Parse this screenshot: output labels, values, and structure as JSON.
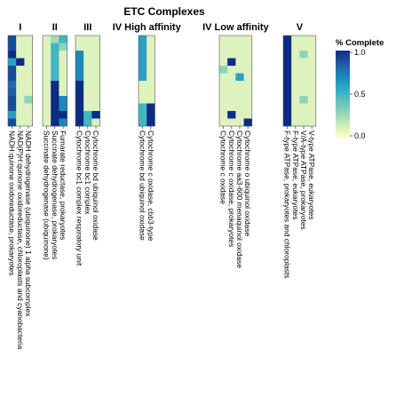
{
  "chart_data": {
    "type": "heatmap",
    "title": "ETC Complexes",
    "row_count": 12,
    "legend": {
      "title": "% Complete",
      "ticks": [
        "0.0",
        "0.5",
        "1.0"
      ],
      "range": [
        0,
        1
      ],
      "position": "right"
    },
    "colorscale": [
      "#ffffcc",
      "#c7e9b4",
      "#7fcdbb",
      "#41b6c4",
      "#1d91c0",
      "#225ea8",
      "#0c2c84"
    ],
    "groups": [
      {
        "label": "I",
        "columns": [
          {
            "label": "NADH:quinone oxidoreductase, prokaryotes",
            "values": [
              0.9,
              0.9,
              1.0,
              0.6,
              0.9,
              0.9,
              0.8,
              0.85,
              0.9,
              0.9,
              0.6,
              0.9
            ]
          },
          {
            "label": "NAD(P)H:quinone oxidoreductase, chloroplasts and cyanobacteria",
            "values": [
              0.1,
              0.1,
              0.1,
              1.0,
              0.1,
              0.1,
              0.1,
              0.1,
              0.1,
              0.1,
              0.1,
              0.1
            ]
          },
          {
            "label": "NADH dehydrogenase (ubiquinone) 1 alpha subcomplex",
            "values": [
              0.1,
              0.1,
              0.1,
              0.1,
              0.1,
              0.1,
              0.1,
              0.1,
              0.3,
              0.1,
              0.1,
              0.1
            ]
          }
        ]
      },
      {
        "label": "II",
        "columns": [
          {
            "label": "Succinate dehydrogenase (ubiquinone)",
            "values": [
              0.1,
              0.1,
              0.1,
              0.1,
              0.1,
              0.1,
              0.1,
              0.1,
              0.1,
              0.1,
              0.1,
              0.1
            ]
          },
          {
            "label": "Succinate dehydrogenase, prokaryotes",
            "values": [
              0.25,
              0.5,
              0.5,
              0.5,
              0.5,
              0.5,
              1.0,
              1.0,
              1.0,
              1.0,
              1.0,
              1.0
            ]
          },
          {
            "label": "Fumarate reductase, prokaryotes",
            "values": [
              0.5,
              0.3,
              0.1,
              0.1,
              0.1,
              0.1,
              0.1,
              0.1,
              0.7,
              0.7,
              1.0,
              0.7
            ]
          }
        ]
      },
      {
        "label": "III",
        "columns": [
          {
            "label": "Cytochrome bc1 complex respiratory unit",
            "values": [
              0.1,
              0.1,
              0.7,
              0.7,
              0.7,
              0.7,
              1.0,
              1.0,
              1.0,
              1.0,
              1.0,
              1.0
            ]
          },
          {
            "label": "Cytochrome bc1 complex",
            "values": [
              0.1,
              0.1,
              0.1,
              0.1,
              0.1,
              0.1,
              0.1,
              0.1,
              0.1,
              0.1,
              0.5,
              0.5
            ]
          },
          {
            "label": "Cytochrome bd ubiquinol oxidase",
            "values": [
              0.1,
              0.1,
              0.1,
              0.1,
              0.1,
              0.1,
              0.1,
              0.1,
              0.1,
              0.1,
              1.0,
              0.1
            ]
          }
        ]
      },
      {
        "label": "IV High affinity",
        "columns": [
          {
            "label": "Cytochrome bd ubiquinol oxidase",
            "values": [
              0.6,
              0.6,
              0.6,
              0.6,
              0.6,
              0.6,
              0.1,
              0.1,
              0.1,
              0.5,
              0.5,
              0.5
            ]
          },
          {
            "label": "Cytochrome c oxidase, cbb3-type",
            "values": [
              0.1,
              0.1,
              0.1,
              0.1,
              0.1,
              0.1,
              0.1,
              0.1,
              0.1,
              1.0,
              1.0,
              1.0
            ]
          }
        ]
      },
      {
        "label": "IV Low affinity",
        "columns": [
          {
            "label": "Cytochrome c oxidase",
            "values": [
              0.1,
              0.1,
              0.1,
              0.1,
              0.3,
              0.1,
              0.1,
              0.1,
              0.1,
              0.1,
              0.1,
              0.1
            ]
          },
          {
            "label": "Cytochrome c oxidase, prokaryotes",
            "values": [
              0.1,
              0.1,
              0.1,
              1.0,
              0.1,
              0.1,
              0.1,
              0.1,
              0.1,
              0.1,
              1.0,
              0.1
            ]
          },
          {
            "label": "Cytochrome aa3-600 menaquinol oxidase",
            "values": [
              0.1,
              0.1,
              0.1,
              0.1,
              0.1,
              0.6,
              0.1,
              0.1,
              0.1,
              0.1,
              0.1,
              0.1
            ]
          },
          {
            "label": "Cytochrome o ubiquinol oxidase",
            "values": [
              0.1,
              0.1,
              0.1,
              0.1,
              0.1,
              0.1,
              0.1,
              0.1,
              0.1,
              0.1,
              0.1,
              1.0
            ]
          }
        ]
      },
      {
        "label": "V",
        "columns": [
          {
            "label": "F-type ATPase, prokaryotes and chloroplasts",
            "values": [
              1.0,
              1.0,
              1.0,
              1.0,
              1.0,
              1.0,
              1.0,
              1.0,
              1.0,
              1.0,
              1.0,
              1.0
            ]
          },
          {
            "label": "F-type ATPase, eukaryotes",
            "values": [
              0.1,
              0.1,
              0.1,
              0.1,
              0.1,
              0.1,
              0.1,
              0.1,
              0.1,
              0.1,
              0.1,
              0.1
            ]
          },
          {
            "label": "V/A-type ATPase, prokaryotes",
            "values": [
              0.1,
              0.1,
              0.3,
              0.1,
              0.1,
              0.1,
              0.1,
              0.1,
              0.3,
              0.1,
              0.1,
              0.1
            ]
          },
          {
            "label": "V-type ATPase, eukaryotes",
            "values": [
              0.1,
              0.1,
              0.1,
              0.1,
              0.1,
              0.1,
              0.1,
              0.1,
              0.1,
              0.1,
              0.1,
              0.1
            ]
          }
        ]
      }
    ]
  }
}
